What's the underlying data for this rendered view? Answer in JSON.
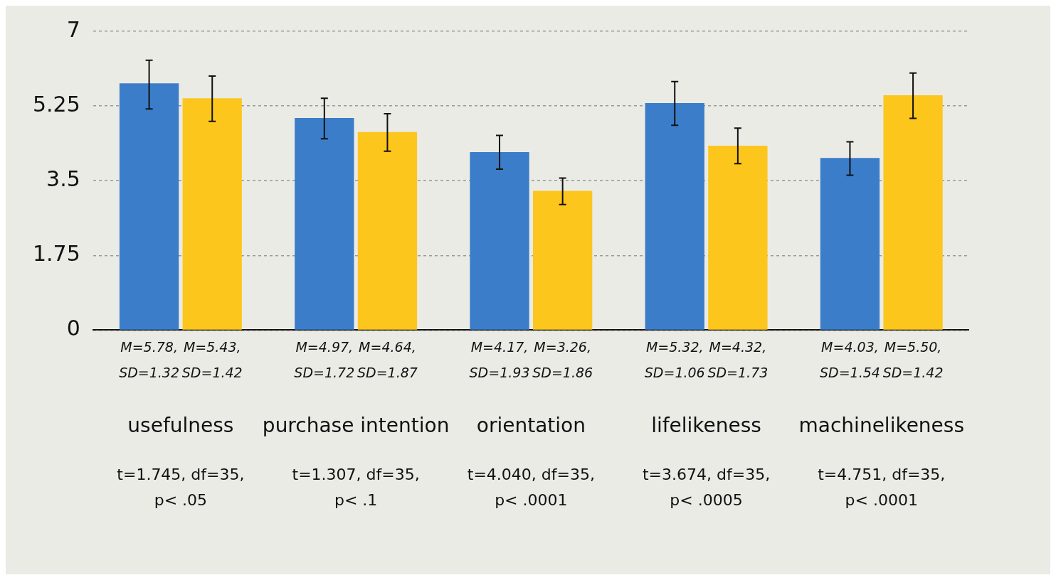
{
  "chart_data": {
    "type": "bar",
    "categories": [
      "usefulness",
      "purchase intention",
      "orientation",
      "lifelikeness",
      "machinelikeness"
    ],
    "series": [
      {
        "color": "#3b7dc8",
        "values": [
          5.78,
          4.97,
          4.17,
          5.32,
          4.03
        ],
        "errors": [
          [
            5.18,
            6.32
          ],
          [
            4.48,
            5.43
          ],
          [
            3.77,
            4.56
          ],
          [
            4.8,
            5.82
          ],
          [
            3.63,
            4.41
          ]
        ],
        "value_labels": [
          "M=5.78,\nSD=1.32",
          "M=4.97,\nSD=1.72",
          "M=4.17,\nSD=1.93",
          "M=5.32,\nSD=1.06",
          "M=4.03,\nSD=1.54"
        ]
      },
      {
        "color": "#fcc61c",
        "values": [
          5.43,
          4.64,
          3.26,
          4.32,
          5.5
        ],
        "errors": [
          [
            4.89,
            5.95
          ],
          [
            4.19,
            5.07
          ],
          [
            2.94,
            3.56
          ],
          [
            3.9,
            4.73
          ],
          [
            4.96,
            6.02
          ]
        ],
        "value_labels": [
          "M=5.43,\nSD=1.42",
          "M=4.64,\nSD=1.87",
          "M=3.26,\nSD=1.86",
          "M=4.32,\nSD=1.73",
          "M=5.50,\nSD=1.42"
        ]
      }
    ],
    "ylim": [
      0,
      7
    ],
    "yticks": [
      0,
      1.75,
      3.5,
      5.25,
      7
    ],
    "grid": "y",
    "legend": false,
    "annotations": [
      "t=1.745, df=35,\np< .05",
      "t=1.307, df=35,\np< .1",
      "t=4.040, df=35,\np< .0001",
      "t=3.674, df=35,\np< .0005",
      "t=4.751, df=35,\np< .0001"
    ]
  }
}
